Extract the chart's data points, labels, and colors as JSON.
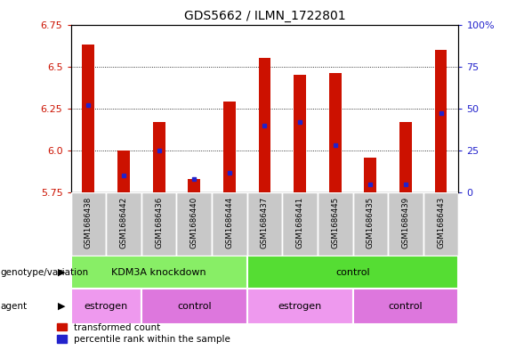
{
  "title": "GDS5662 / ILMN_1722801",
  "samples": [
    "GSM1686438",
    "GSM1686442",
    "GSM1686436",
    "GSM1686440",
    "GSM1686444",
    "GSM1686437",
    "GSM1686441",
    "GSM1686445",
    "GSM1686435",
    "GSM1686439",
    "GSM1686443"
  ],
  "transformed_count": [
    6.63,
    6.0,
    6.17,
    5.83,
    6.29,
    6.55,
    6.45,
    6.46,
    5.96,
    6.17,
    6.6
  ],
  "percentile_rank": [
    52,
    10,
    25,
    8,
    12,
    40,
    42,
    28,
    5,
    5,
    47
  ],
  "y_min": 5.75,
  "y_max": 6.75,
  "y_ticks_left": [
    5.75,
    6.0,
    6.25,
    6.5,
    6.75
  ],
  "y_ticks_right": [
    0,
    25,
    50,
    75,
    100
  ],
  "bar_color": "#cc1100",
  "blue_color": "#2222cc",
  "sample_bg_color": "#c8c8c8",
  "genotype_groups": [
    {
      "label": "KDM3A knockdown",
      "start": 0,
      "end": 5,
      "color": "#88ee66"
    },
    {
      "label": "control",
      "start": 5,
      "end": 11,
      "color": "#55dd33"
    }
  ],
  "agent_groups": [
    {
      "label": "estrogen",
      "start": 0,
      "end": 2,
      "color": "#ee99ee"
    },
    {
      "label": "control",
      "start": 2,
      "end": 5,
      "color": "#dd77dd"
    },
    {
      "label": "estrogen",
      "start": 5,
      "end": 8,
      "color": "#ee99ee"
    },
    {
      "label": "control",
      "start": 8,
      "end": 11,
      "color": "#dd77dd"
    }
  ],
  "genotype_label": "genotype/variation",
  "agent_label": "agent",
  "legend_red": "transformed count",
  "legend_blue": "percentile rank within the sample",
  "grid_lines": [
    6.0,
    6.25,
    6.5
  ]
}
